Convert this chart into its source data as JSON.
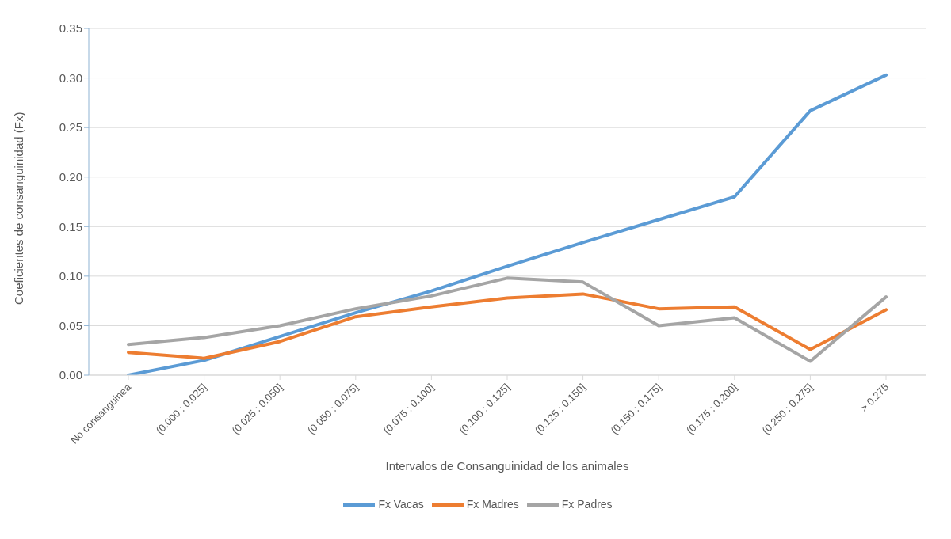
{
  "chart_data": {
    "type": "line",
    "xlabel": "Intervalos de Consanguinidad de los animales",
    "ylabel": "Coeficientes de consanguinidad (Fx)",
    "categories": [
      "No consanguinea",
      "(0.000 : 0.025]",
      "(0.025 : 0.050]",
      "(0.050 : 0.075]",
      "(0.075 : 0.100]",
      "(0.100 : 0.125]",
      "(0.125 : 0.150]",
      "(0.150 : 0.175]",
      "(0.175 : 0.200]",
      "(0.250 : 0.275]",
      "> 0.275"
    ],
    "series": [
      {
        "name": "Fx Vacas",
        "color": "#5b9bd5",
        "values": [
          0.0,
          0.015,
          0.039,
          0.063,
          0.085,
          0.11,
          0.134,
          0.157,
          0.18,
          0.267,
          0.303
        ]
      },
      {
        "name": "Fx Madres",
        "color": "#ed7d31",
        "values": [
          0.023,
          0.017,
          0.034,
          0.059,
          0.069,
          0.078,
          0.082,
          0.067,
          0.069,
          0.026,
          0.066
        ]
      },
      {
        "name": "Fx Padres",
        "color": "#a5a5a5",
        "values": [
          0.031,
          0.038,
          0.05,
          0.067,
          0.08,
          0.098,
          0.094,
          0.05,
          0.058,
          0.014,
          0.079
        ]
      }
    ],
    "ylim": [
      0,
      0.35
    ],
    "yticks": [
      {
        "value": 0,
        "label": "0.00"
      },
      {
        "value": 0.05,
        "label": "0.05"
      },
      {
        "value": 0.1,
        "label": "0.10"
      },
      {
        "value": 0.15,
        "label": "0.15"
      },
      {
        "value": 0.2,
        "label": "0.20"
      },
      {
        "value": 0.25,
        "label": "0.25"
      },
      {
        "value": 0.3,
        "label": "0.30"
      },
      {
        "value": 0.35,
        "label": "0.35"
      }
    ],
    "grid": "y",
    "legend": "bottom",
    "marker": "none",
    "line_style": "solid"
  }
}
